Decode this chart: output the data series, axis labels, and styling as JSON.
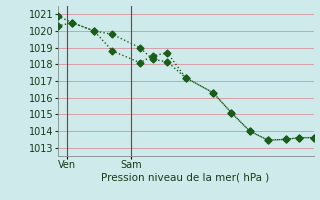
{
  "title": "Pression niveau de la mer( hPa )",
  "bg_color": "#ceeaea",
  "grid_color": "#d4a0a8",
  "line_color": "#1a5c1a",
  "ylim": [
    1012.5,
    1021.5
  ],
  "yticks": [
    1013,
    1014,
    1015,
    1016,
    1017,
    1018,
    1019,
    1020,
    1021
  ],
  "xlim": [
    0,
    14
  ],
  "xticks": [
    0,
    2,
    4,
    6,
    8,
    10,
    12,
    14
  ],
  "ven_x": 0.5,
  "sam_x": 4.0,
  "series1_x": [
    0,
    0.8,
    2.0,
    3.0,
    4.5,
    5.2,
    6.0,
    7.0,
    8.5,
    9.5,
    10.5,
    11.5,
    12.5,
    13.2,
    14.0
  ],
  "series1_y": [
    1020.3,
    1020.5,
    1020.0,
    1019.8,
    1019.0,
    1018.3,
    1018.15,
    1017.2,
    1016.3,
    1015.1,
    1014.0,
    1013.45,
    1013.5,
    1013.6,
    1013.6
  ],
  "series2_x": [
    0,
    0.8,
    2.0,
    3.0,
    4.5,
    5.2,
    6.0,
    7.0,
    8.5,
    9.5,
    10.5,
    11.5,
    12.5,
    13.2,
    14.0
  ],
  "series2_y": [
    1020.9,
    1020.5,
    1020.0,
    1018.8,
    1018.1,
    1018.5,
    1018.7,
    1017.2,
    1016.3,
    1015.1,
    1014.0,
    1013.45,
    1013.5,
    1013.6,
    1013.6
  ],
  "ven_label": "Ven",
  "sam_label": "Sam",
  "markersize": 3.5,
  "linewidth": 1.0
}
